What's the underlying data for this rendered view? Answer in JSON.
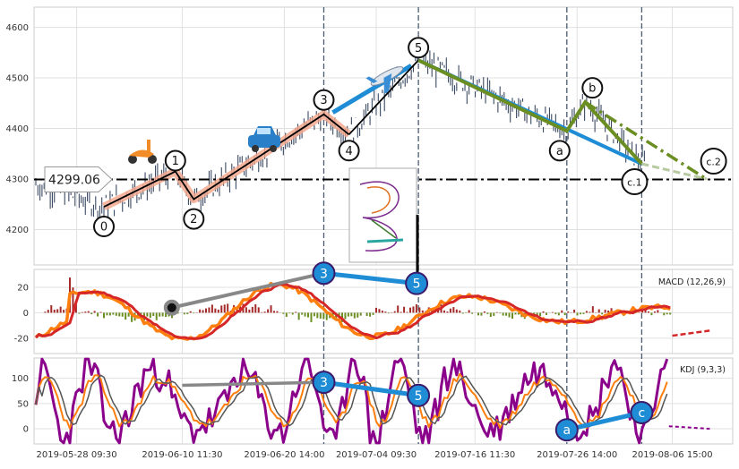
{
  "chart_data": [
    {
      "type": "line",
      "panel": "price",
      "y_ticks": [
        4200,
        4300,
        4400,
        4500,
        4600
      ],
      "ylim": [
        4130,
        4640
      ],
      "x_ticks": [
        "2019-05-28 09:30",
        "2019-06-10 11:30",
        "2019-06-20 14:00",
        "2019-07-04 09:30",
        "2019-07-16 11:30",
        "2019-07-26 14:00",
        "2019-08-06 15:00"
      ],
      "price_label": "4299.06",
      "price_level": 4299.06,
      "wave_points": [
        {
          "label": "0",
          "value": 4245
        },
        {
          "label": "1",
          "value": 4315
        },
        {
          "label": "2",
          "value": 4260
        },
        {
          "label": "3",
          "value": 4428
        },
        {
          "label": "4",
          "value": 4388
        },
        {
          "label": "5",
          "value": 4535
        },
        {
          "label": "a",
          "value": 4395
        },
        {
          "label": "b",
          "value": 4452
        },
        {
          "label": "c.1",
          "value": 4330
        },
        {
          "label": "c.2",
          "value": 4300
        }
      ],
      "icons": [
        "scooter-icon",
        "car-icon",
        "airplane-icon"
      ],
      "colors": {
        "wave": "#000000",
        "impulse": "#f4a58a",
        "up": "#1f8dd6",
        "correction": "#6b8e23",
        "level": "#000000"
      }
    },
    {
      "type": "bar",
      "panel": "macd",
      "label": "MACD (12,26,9)",
      "y_ticks": [
        20,
        0,
        -20
      ],
      "ylim": [
        -32,
        34
      ],
      "markers": [
        {
          "label": "3",
          "value": 31
        },
        {
          "label": "5",
          "value": 23
        }
      ],
      "colors": {
        "dif": "#ff7f0e",
        "dea": "#d62728",
        "up": "#a52a2a",
        "down": "#6b8e23"
      }
    },
    {
      "type": "line",
      "panel": "kdj",
      "label": "KDJ (9,3,3)",
      "y_ticks": [
        100,
        50,
        0
      ],
      "ylim": [
        -30,
        140
      ],
      "markers": [
        {
          "label": "3",
          "value": 92
        },
        {
          "label": "5",
          "value": 66
        },
        {
          "label": "a",
          "value": -2
        },
        {
          "label": "c",
          "value": 32
        }
      ],
      "colors": {
        "k": "#ff7f0e",
        "d": "#555555",
        "j": "#8b008b"
      }
    }
  ]
}
